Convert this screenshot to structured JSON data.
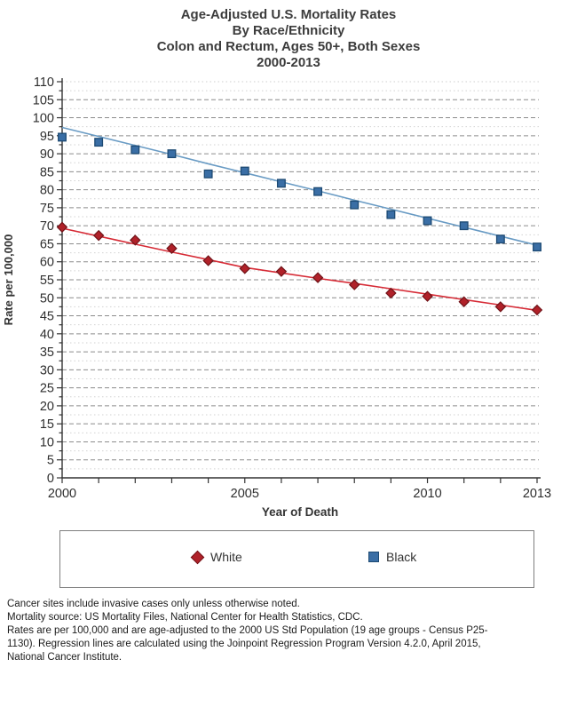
{
  "title": {
    "lines": [
      "Age-Adjusted U.S. Mortality Rates",
      "By Race/Ethnicity",
      "Colon and Rectum, Ages 50+, Both Sexes",
      "2000-2013"
    ]
  },
  "chart_data": {
    "type": "scatter",
    "title": "Age-Adjusted U.S. Mortality Rates, By Race/Ethnicity, Colon and Rectum, Ages 50+, Both Sexes, 2000-2013",
    "x": [
      2000,
      2001,
      2002,
      2003,
      2004,
      2005,
      2006,
      2007,
      2008,
      2009,
      2010,
      2011,
      2012,
      2013
    ],
    "xlabel": "Year of Death",
    "ylabel": "Rate per 100,000",
    "ylim": [
      0,
      110
    ],
    "ytick_step": 5,
    "ytick_minor_step": 2.5,
    "xtick_labels": [
      "2000",
      "2005",
      "2010",
      "2013"
    ],
    "grid": {
      "major": "dashed-horizontal",
      "minor": "faint-dotted-horizontal"
    },
    "legend_position": "bottom-box",
    "series": [
      {
        "name": "White",
        "marker": "diamond",
        "marker_fill": "#b02129",
        "marker_stroke": "#701318",
        "line_color": "#d62b36",
        "values": [
          69.6,
          67.3,
          66.0,
          63.7,
          60.3,
          58.1,
          57.3,
          55.6,
          53.6,
          51.3,
          50.4,
          48.9,
          47.5,
          46.6
        ],
        "trend": [
          69.3,
          67.1,
          64.9,
          62.7,
          60.6,
          58.4,
          56.9,
          55.4,
          54.0,
          52.5,
          51.0,
          49.5,
          48.0,
          46.5
        ]
      },
      {
        "name": "Black",
        "marker": "square",
        "marker_fill": "#3a6ea5",
        "marker_stroke": "#1d4a73",
        "line_color": "#699bc4",
        "values": [
          94.6,
          93.2,
          91.1,
          90.0,
          84.4,
          85.2,
          81.8,
          79.5,
          75.8,
          73.1,
          71.4,
          70.0,
          66.3,
          64.1
        ],
        "trend": [
          97.3,
          94.8,
          92.3,
          89.8,
          87.2,
          84.7,
          82.2,
          79.7,
          77.1,
          74.6,
          72.1,
          69.6,
          67.1,
          64.6
        ]
      }
    ]
  },
  "legend": {
    "items": [
      {
        "label": "White"
      },
      {
        "label": "Black"
      }
    ]
  },
  "footnotes": [
    "Cancer sites include invasive cases only unless otherwise noted.",
    "Mortality source: US Mortality Files, National Center for Health Statistics, CDC.",
    "Rates are per 100,000 and are age-adjusted to the 2000 US Std Population (19 age groups - Census P25-",
    "1130). Regression lines are calculated using the Joinpoint Regression Program Version 4.2.0, April 2015,",
    "National Cancer Institute."
  ]
}
